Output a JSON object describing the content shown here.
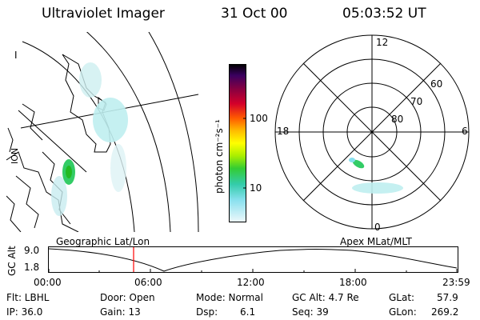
{
  "header": {
    "title": "Ultraviolet Imager",
    "date": "31 Oct 00",
    "time": "05:03:52 UT"
  },
  "colorbar": {
    "unit_label": "photon cm⁻²s⁻¹",
    "ticks": [
      "100",
      "10"
    ]
  },
  "polar_plot": {
    "mlt_labels": {
      "top": "12",
      "left": "18",
      "right": "6",
      "bottom": "0"
    },
    "lat_labels": [
      "60",
      "70",
      "80"
    ]
  },
  "geo_labels": {
    "corner": "I",
    "side": "ION"
  },
  "timeline": {
    "left_label": "Geographic Lat/Lon",
    "right_label": "Apex MLat/MLT",
    "y_axis_label": "GC Alt",
    "y_ticks": [
      "9.0",
      "1.8"
    ],
    "x_ticks": [
      "00:00",
      "06:00",
      "12:00",
      "18:00",
      "23:59"
    ]
  },
  "info": {
    "flt": "Flt: LBHL",
    "ip": "IP: 36.0",
    "door": "Door: Open",
    "gain": "Gain: 13",
    "mode": "Mode: Normal",
    "dsp_label": "Dsp:",
    "dsp_value": "6.1",
    "gc_alt": "GC Alt: 4.7 Re",
    "seq": "Seq: 39",
    "glat_label": "GLat:",
    "glat_value": "57.9",
    "glon_label": "GLon:",
    "glon_value": "269.2"
  }
}
